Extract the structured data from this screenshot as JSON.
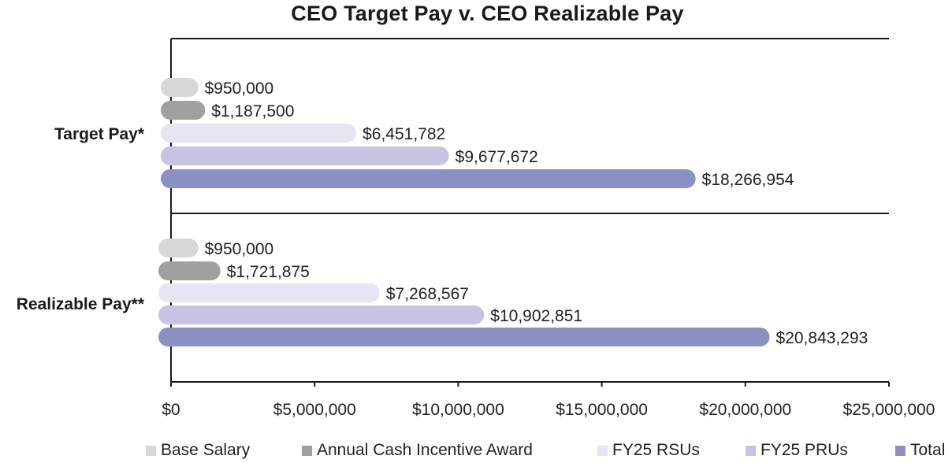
{
  "chart_data": {
    "type": "bar",
    "orientation": "horizontal",
    "title": "CEO Target Pay v. CEO Realizable Pay",
    "xlabel": "",
    "ylabel": "",
    "xlim": [
      0,
      25000000
    ],
    "x_ticks": [
      0,
      5000000,
      10000000,
      15000000,
      20000000,
      25000000
    ],
    "x_tick_labels": [
      "$0",
      "$5,000,000",
      "$10,000,000",
      "$15,000,000",
      "$20,000,000",
      "$25,000,000"
    ],
    "categories": [
      "Target Pay*",
      "Realizable Pay**"
    ],
    "series": [
      {
        "name": "Base Salary",
        "color": "#d7d8d6",
        "values": [
          950000,
          950000
        ],
        "labels": [
          "$950,000",
          "$950,000"
        ]
      },
      {
        "name": "Annual Cash Incentive Award",
        "color": "#a0a09f",
        "values": [
          1187500,
          1721875
        ],
        "labels": [
          "$1,187,500",
          "$1,721,875"
        ]
      },
      {
        "name": "FY25 RSUs",
        "color": "#e6e5f4",
        "values": [
          6451782,
          7268567
        ],
        "labels": [
          "$6,451,782",
          "$7,268,567"
        ]
      },
      {
        "name": "FY25 PRUs",
        "color": "#c9c3e3",
        "values": [
          9677672,
          10902851
        ],
        "labels": [
          "$9,677,672",
          "$10,902,851"
        ]
      },
      {
        "name": "Total",
        "color": "#8c91c3",
        "values": [
          18266954,
          20843293
        ],
        "labels": [
          "$18,266,954",
          "$20,843,293"
        ]
      }
    ],
    "grid": false,
    "legend_position": "bottom"
  }
}
